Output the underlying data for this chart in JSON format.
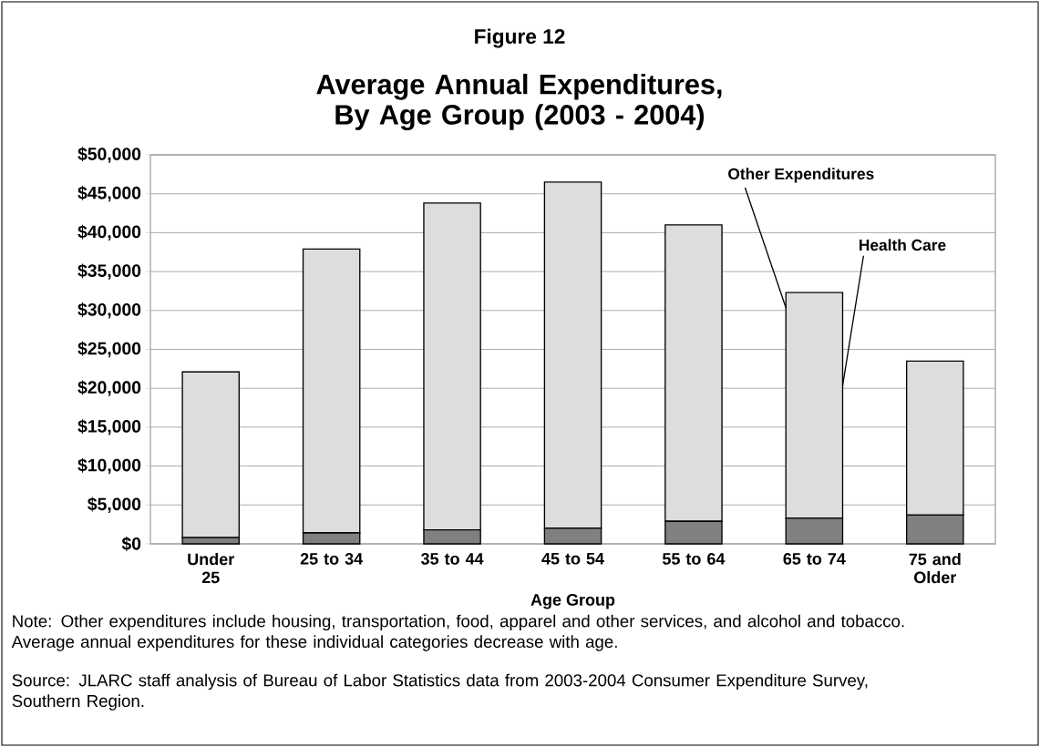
{
  "chart_data": {
    "type": "bar",
    "stacked": true,
    "title": "Figure 12",
    "subtitle": "Average Annual Expenditures, By Age Group (2003 - 2004)",
    "xlabel": "Age Group",
    "categories": [
      "Under 25",
      "25 to 34",
      "35 to 44",
      "45 to 54",
      "55 to 64",
      "65 to 74",
      "75 and Older"
    ],
    "series": [
      {
        "name": "Health Care",
        "color": "#808080",
        "values": [
          800,
          1400,
          1800,
          2000,
          2900,
          3300,
          3700
        ]
      },
      {
        "name": "Other Expenditures",
        "color": "#dddddd",
        "values": [
          21300,
          36500,
          42000,
          44500,
          38100,
          29000,
          19800
        ]
      }
    ],
    "ylim": [
      0,
      50000
    ],
    "yticks": [
      {
        "value": 0,
        "label": "$0"
      },
      {
        "value": 5000,
        "label": "$5,000"
      },
      {
        "value": 10000,
        "label": "$10,000"
      },
      {
        "value": 15000,
        "label": "$15,000"
      },
      {
        "value": 20000,
        "label": "$20,000"
      },
      {
        "value": 25000,
        "label": "$25,000"
      },
      {
        "value": 30000,
        "label": "$30,000"
      },
      {
        "value": 35000,
        "label": "$35,000"
      },
      {
        "value": 40000,
        "label": "$40,000"
      },
      {
        "value": 45000,
        "label": "$45,000"
      },
      {
        "value": 50000,
        "label": "$50,000"
      }
    ],
    "grid": "y",
    "legend": false,
    "annotations": [
      "Note:  Other expenditures include housing, transportation, food, apparel and other services, and alcohol and tobacco. Average annual expenditures for these individual categories decrease with age.",
      "Source: JLARC staff analysis of Bureau of Labor Statistics data from 2003-2004 Consumer Expenditure Survey, Southern Region."
    ]
  }
}
